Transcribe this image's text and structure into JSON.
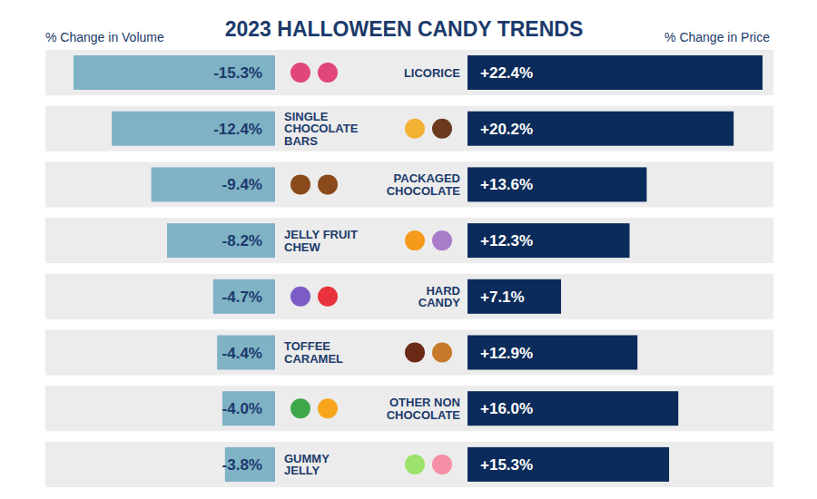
{
  "chart_data": {
    "type": "bar",
    "orientation": "horizontal",
    "title": "2023 HALLOWEEN CANDY TRENDS",
    "categories": [
      "LICORICE",
      "SINGLE CHOCOLATE BARS",
      "PACKAGED CHOCOLATE",
      "JELLY FRUIT CHEW",
      "HARD CANDY",
      "TOFFEE CARAMEL",
      "OTHER NON CHOCOLATE",
      "GUMMY JELLY"
    ],
    "series": [
      {
        "name": "% Change in Volume",
        "color": "#7fb2c5",
        "values": [
          -15.3,
          -12.4,
          -9.4,
          -8.2,
          -4.7,
          -4.4,
          -4.0,
          -3.8
        ],
        "value_labels": [
          "-15.3%",
          "-12.4%",
          "-9.4%",
          "-8.2%",
          "-4.7%",
          "-4.4%",
          "-4.0%",
          "-3.8%"
        ]
      },
      {
        "name": "% Change in Price",
        "color": "#0b2b5a",
        "values": [
          22.4,
          20.2,
          13.6,
          12.3,
          7.1,
          12.9,
          16.0,
          15.3
        ],
        "value_labels": [
          "+22.4%",
          "+20.2%",
          "+13.6%",
          "+12.3%",
          "+7.1%",
          "+12.9%",
          "+16.0%",
          "+15.3%"
        ]
      }
    ],
    "xlim": [
      -16,
      23
    ],
    "tick_labels": false,
    "grid": false,
    "data_labels": true
  }
}
